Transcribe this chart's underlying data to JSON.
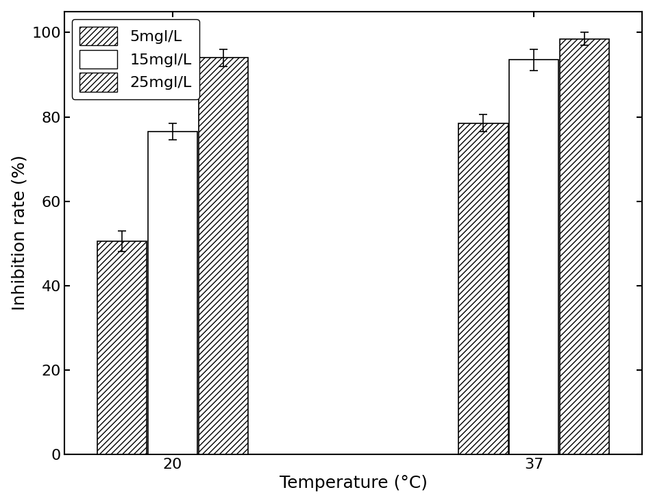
{
  "temperatures": [
    "20",
    "37"
  ],
  "concentrations": [
    "5mgl/L",
    "15mgl/L",
    "25mgl/L"
  ],
  "values": {
    "20": [
      50.5,
      76.5,
      94.0
    ],
    "37": [
      78.5,
      93.5,
      98.5
    ]
  },
  "errors": {
    "20": [
      2.5,
      2.0,
      2.0
    ],
    "37": [
      2.0,
      2.5,
      1.5
    ]
  },
  "ylim": [
    0,
    105
  ],
  "yticks": [
    0,
    20,
    40,
    60,
    80,
    100
  ],
  "ylabel": "Inhibition rate (%)",
  "xlabel": "Temperature (°C)",
  "bar_width": 0.28,
  "group_centers": [
    1.0,
    3.0
  ],
  "background_color": "#ffffff",
  "bar_edge_color": "#000000",
  "hatch_patterns": [
    "////",
    "",
    "////"
  ],
  "bar_face_colors": [
    "#ffffff",
    "#ffffff",
    "#ffffff"
  ],
  "legend_labels": [
    "5mgl/L",
    "15mgl/L",
    "25mgl/L"
  ],
  "font_size": 16,
  "tick_font_size": 16,
  "label_font_size": 18
}
